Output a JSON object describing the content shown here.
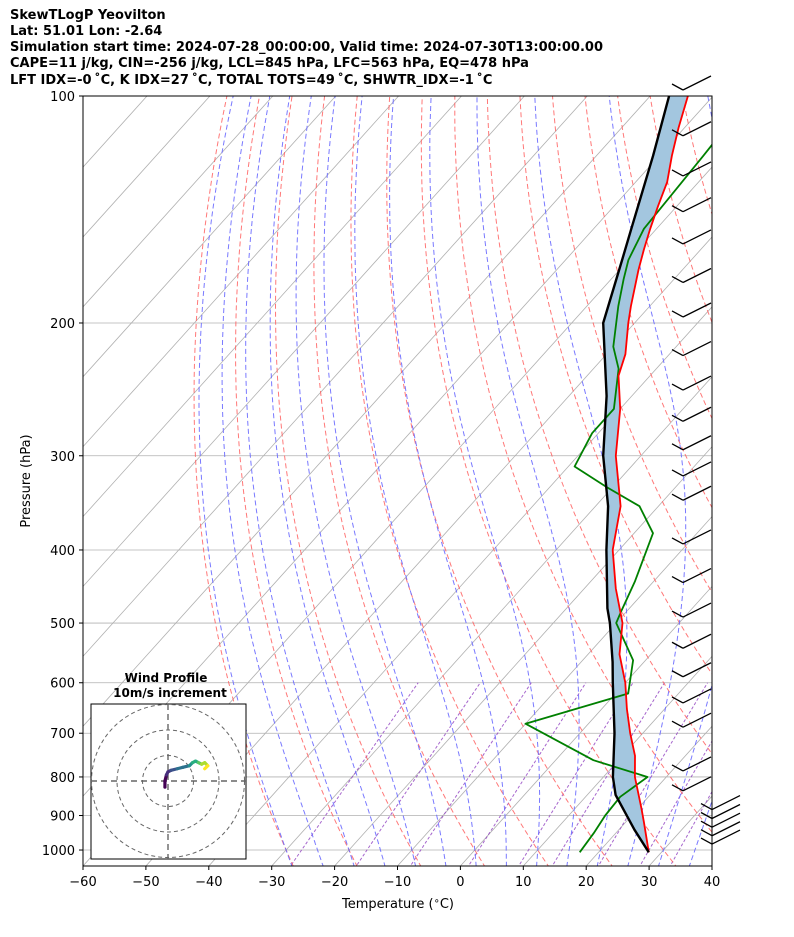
{
  "header": {
    "title": "SkewTLogP Yeovilton",
    "location": "Lat: 51.01   Lon: -2.64",
    "times": "Simulation start time: 2024-07-28_00:00:00, Valid time: 2024-07-30T13:00:00.00",
    "indices1": "CAPE=11 j/kg, CIN=-256 j/kg, LCL=845 hPa, LFC=563 hPa, EQ=478 hPa",
    "indices2": "LFT IDX=-0 ˚C, K IDX=27 ˚C, TOTAL TOTS=49 ˚C, SHWTR_IDX=-1 ˚C"
  },
  "colors": {
    "temperature": "#ff0000",
    "dewpoint": "#008000",
    "parcel": "#000000",
    "cape_fill": "#a3c6df",
    "dry_adiabat": "#ff6060",
    "moist_adiabat": "#6a6aff",
    "mixing_ratio": "#9040c0",
    "isotherm": "#b0b0b0"
  },
  "chart_data": {
    "type": "skew-t log-p",
    "xlabel": "Temperature ($^\\circ$C)",
    "ylabel": "Pressure (hPa)",
    "xlim": [
      -60,
      40
    ],
    "ylim_hpa": [
      1050,
      100
    ],
    "x_ticks": [
      -60,
      -50,
      -40,
      -30,
      -20,
      -10,
      0,
      10,
      20,
      30,
      40
    ],
    "y_ticks": [
      100,
      200,
      300,
      400,
      500,
      600,
      700,
      800,
      900,
      1000
    ],
    "y_log_scale": true,
    "grid": true,
    "temperature_profile": {
      "p": [
        1007,
        920,
        880,
        800,
        750,
        700,
        650,
        600,
        550,
        500,
        450,
        400,
        350,
        300,
        260,
        235,
        220,
        200,
        190,
        170,
        160,
        150,
        140,
        130,
        120,
        110,
        100
      ],
      "T": [
        28,
        23,
        20.5,
        15,
        12,
        8,
        4,
        0,
        -5,
        -9,
        -15,
        -21,
        -26,
        -34,
        -40,
        -45,
        -47,
        -51,
        -53,
        -57,
        -59,
        -61,
        -63,
        -65,
        -68,
        -71,
        -74
      ]
    },
    "dewpoint_profile": {
      "p": [
        1007,
        950,
        900,
        850,
        800,
        760,
        680,
        620,
        560,
        500,
        480,
        440,
        380,
        350,
        330,
        310,
        280,
        260,
        230,
        215,
        190,
        175,
        165,
        150,
        120,
        100
      ],
      "Td": [
        17,
        16.5,
        15.8,
        15.5,
        17,
        6,
        -10,
        2,
        -2,
        -10,
        -11,
        -13,
        -17,
        -23,
        -31,
        -39,
        -41,
        -41,
        -46,
        -50,
        -55,
        -58,
        -60,
        -62,
        -63,
        -64
      ]
    },
    "parcel_profile": {
      "p": [
        1007,
        940,
        845,
        800,
        700,
        600,
        563,
        500,
        478,
        400,
        350,
        300,
        250,
        200,
        165,
        150,
        120,
        100
      ],
      "T": [
        28,
        22.5,
        14.5,
        11.5,
        5.5,
        -2,
        -5,
        -11,
        -13.5,
        -22,
        -28,
        -36,
        -44,
        -55,
        -61,
        -64,
        -71,
        -77
      ]
    },
    "wind_barb_levels": [
      1000,
      975,
      950,
      925,
      900,
      850,
      800,
      700,
      650,
      600,
      550,
      500,
      450,
      400,
      350,
      325,
      300,
      275,
      250,
      225,
      200,
      180,
      160,
      145,
      130,
      115,
      100
    ],
    "wind_inset": {
      "title": "Wind Profile",
      "subtitle": "10m/s increment",
      "rings_ms": [
        10,
        20,
        30
      ],
      "hodograph": {
        "u": [
          -1,
          -1,
          -0.5,
          0,
          1,
          3,
          5,
          7,
          8,
          9,
          10,
          11,
          12,
          13,
          12
        ],
        "v": [
          -2,
          0,
          2,
          3,
          3.5,
          4,
          4.5,
          5,
          6,
          6.5,
          6,
          5.5,
          6,
          5,
          4
        ]
      }
    }
  }
}
